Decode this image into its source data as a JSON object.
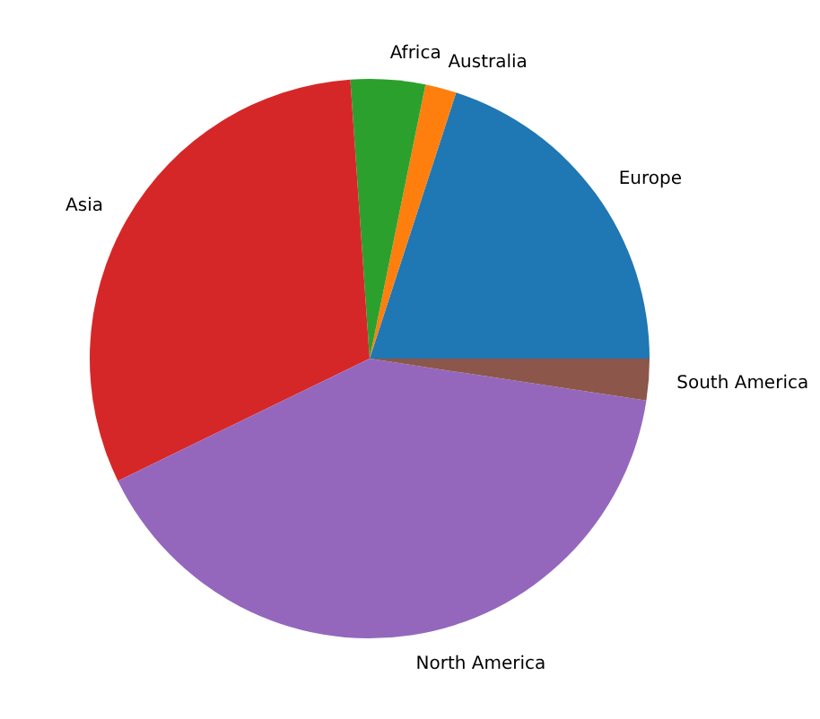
{
  "chart_data": {
    "type": "pie",
    "categories": [
      "Europe",
      "Australia",
      "Africa",
      "Asia",
      "North America",
      "South America"
    ],
    "values": [
      20,
      1.8,
      4.3,
      31.1,
      40.4,
      2.4
    ],
    "colors": [
      "#1f77b4",
      "#ff7f0e",
      "#2ca02c",
      "#d62728",
      "#9467bd",
      "#8c564b"
    ]
  }
}
